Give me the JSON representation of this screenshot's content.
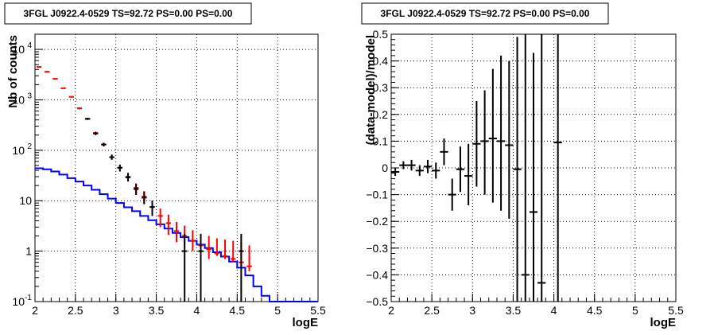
{
  "chart_data": [
    {
      "type": "histogram",
      "title": "3FGL J0922.4-0529 TS=92.72 PS=0.00 PS=0.00",
      "xlabel": "logE",
      "ylabel": "Nb of counts",
      "xlim": [
        2,
        5.5
      ],
      "ylim": [
        0.1,
        20000
      ],
      "yscale": "log",
      "grid": true,
      "x_ticks": [
        {
          "value": 2,
          "label": "2"
        },
        {
          "value": 2.5,
          "label": "2.5"
        },
        {
          "value": 3,
          "label": "3"
        },
        {
          "value": 3.5,
          "label": "3.5"
        },
        {
          "value": 4,
          "label": "4"
        },
        {
          "value": 4.5,
          "label": "4.5"
        },
        {
          "value": 5,
          "label": "5"
        },
        {
          "value": 5.5,
          "label": "5.5"
        }
      ],
      "y_ticks": [
        {
          "value": 0.1,
          "label": "10",
          "exp": "-1"
        },
        {
          "value": 1,
          "label": "1",
          "exp": ""
        },
        {
          "value": 10,
          "label": "10",
          "exp": ""
        },
        {
          "value": 100,
          "label": "10",
          "exp": "2"
        },
        {
          "value": 1000,
          "label": "10",
          "exp": "3"
        },
        {
          "value": 10000,
          "label": "10",
          "exp": "4"
        }
      ],
      "bin_width": 0.1,
      "series": [
        {
          "role": "model",
          "color": "#0000ff",
          "x": [
            2.05,
            2.15,
            2.25,
            2.35,
            2.45,
            2.55,
            2.65,
            2.75,
            2.85,
            2.95,
            3.05,
            3.15,
            3.25,
            3.35,
            3.45,
            3.55,
            3.65,
            3.75,
            3.85,
            3.95,
            4.05,
            4.15,
            4.25,
            4.35,
            4.45,
            4.55,
            4.65,
            4.75,
            4.85,
            4.95,
            5.05,
            5.15,
            5.25,
            5.35,
            5.45
          ],
          "y": [
            44,
            42,
            38,
            33,
            28,
            24,
            20,
            16.5,
            13.5,
            11,
            9,
            7.4,
            6.2,
            5.0,
            4.1,
            3.4,
            2.8,
            2.3,
            1.9,
            1.6,
            1.35,
            1.15,
            0.95,
            0.78,
            0.62,
            0.47,
            0.33,
            0.2,
            0.13,
            0.1,
            0.1,
            0.1,
            0.1,
            0.1,
            0.1
          ]
        },
        {
          "role": "counts-red",
          "color": "#ff0000",
          "x": [
            2.05,
            2.15,
            2.25,
            2.35,
            2.45,
            2.55,
            2.65,
            2.75,
            2.85,
            2.95,
            3.05,
            3.15,
            3.25,
            3.35,
            3.45,
            3.55,
            3.65,
            3.75,
            3.85,
            3.95,
            4.05,
            4.15,
            4.25,
            4.35,
            4.45,
            4.55,
            4.65
          ],
          "y": [
            4500,
            3600,
            2600,
            1700,
            1150,
            680,
            420,
            220,
            130,
            73,
            45,
            30,
            18,
            12,
            7.5,
            5,
            3.6,
            2.5,
            2,
            1.6,
            1.3,
            1.1,
            0.9,
            0.8,
            0.7,
            0.6,
            0.5
          ],
          "yerr_low": [
            4400,
            3500,
            2520,
            1660,
            1110,
            650,
            400,
            205,
            119,
            65,
            38,
            25,
            14,
            9,
            5,
            3,
            2.1,
            1.5,
            1.3,
            1.0,
            0.8,
            0.7,
            0.8,
            0.7,
            0.6,
            0.5,
            0.4
          ],
          "yerr_high": [
            4600,
            3700,
            2680,
            1740,
            1190,
            710,
            440,
            235,
            141,
            82,
            52,
            36,
            22,
            15.5,
            10,
            7,
            5.3,
            3.8,
            3.2,
            2.6,
            2.2,
            2.0,
            1.8,
            1.7,
            1.6,
            1.5,
            1.3
          ]
        },
        {
          "role": "counts-black",
          "color": "#000000",
          "x": [
            2.65,
            2.75,
            2.85,
            2.95,
            3.05,
            3.15,
            3.25,
            3.35,
            3.45,
            3.85,
            4.05,
            4.55
          ],
          "y": [
            420,
            215,
            130,
            73,
            45,
            29,
            17,
            11.5,
            7.5,
            1,
            1,
            1
          ],
          "yerr_low": [
            400,
            200,
            119,
            65,
            38,
            24,
            13,
            8.5,
            5,
            0.1,
            0.1,
            0.1
          ],
          "yerr_high": [
            440,
            230,
            141,
            82,
            52,
            35,
            21.5,
            15,
            10,
            2.2,
            2.2,
            2.2
          ]
        }
      ]
    },
    {
      "type": "scatter",
      "title": "3FGL J0922.4-0529 TS=92.72 PS=0.00 PS=0.00",
      "xlabel": "logE",
      "ylabel": "(data-model)/model",
      "xlim": [
        2,
        5.5
      ],
      "ylim": [
        -0.5,
        0.5
      ],
      "grid": true,
      "x_ticks": [
        {
          "value": 2,
          "label": "2"
        },
        {
          "value": 2.5,
          "label": "2.5"
        },
        {
          "value": 3,
          "label": "3"
        },
        {
          "value": 3.5,
          "label": "3.5"
        },
        {
          "value": 4,
          "label": "4"
        },
        {
          "value": 4.5,
          "label": "4.5"
        },
        {
          "value": 5,
          "label": "5"
        },
        {
          "value": 5.5,
          "label": "5.5"
        }
      ],
      "y_ticks": [
        {
          "value": -0.5,
          "label": "−0.5"
        },
        {
          "value": -0.4,
          "label": "−0.4"
        },
        {
          "value": -0.3,
          "label": "−0.3"
        },
        {
          "value": -0.2,
          "label": "−0.2"
        },
        {
          "value": -0.1,
          "label": "−0.1"
        },
        {
          "value": 0,
          "label": "0"
        },
        {
          "value": 0.1,
          "label": "0.1"
        },
        {
          "value": 0.2,
          "label": "0.2"
        },
        {
          "value": 0.3,
          "label": "0.3"
        },
        {
          "value": 0.4,
          "label": "0.4"
        },
        {
          "value": 0.5,
          "label": "0.5"
        }
      ],
      "bin_width": 0.1,
      "series": [
        {
          "role": "residuals",
          "color": "#000000",
          "x": [
            2.05,
            2.15,
            2.25,
            2.35,
            2.45,
            2.55,
            2.65,
            2.75,
            2.85,
            2.95,
            3.05,
            3.15,
            3.25,
            3.35,
            3.45,
            3.55,
            3.65,
            3.75,
            3.85,
            4.05
          ],
          "y": [
            -0.015,
            0.01,
            0.01,
            -0.01,
            0.005,
            -0.01,
            0.06,
            -0.1,
            -0.005,
            -0.03,
            0.09,
            0.1,
            0.11,
            0.1,
            0.085,
            -0.005,
            -0.4,
            -0.165,
            -0.43,
            0.095
          ],
          "yerr_low": [
            -0.03,
            -0.005,
            -0.01,
            -0.03,
            -0.02,
            -0.04,
            0.01,
            -0.16,
            -0.09,
            -0.14,
            -0.07,
            -0.1,
            -0.13,
            -0.16,
            -0.19,
            -0.5,
            -0.5,
            -0.5,
            -0.5,
            -0.5
          ],
          "yerr_high": [
            0.0,
            0.025,
            0.03,
            0.01,
            0.03,
            0.02,
            0.11,
            -0.04,
            0.08,
            0.09,
            0.25,
            0.29,
            0.37,
            0.42,
            0.4,
            0.49,
            0.5,
            0.43,
            0.5,
            0.5
          ]
        }
      ]
    }
  ]
}
